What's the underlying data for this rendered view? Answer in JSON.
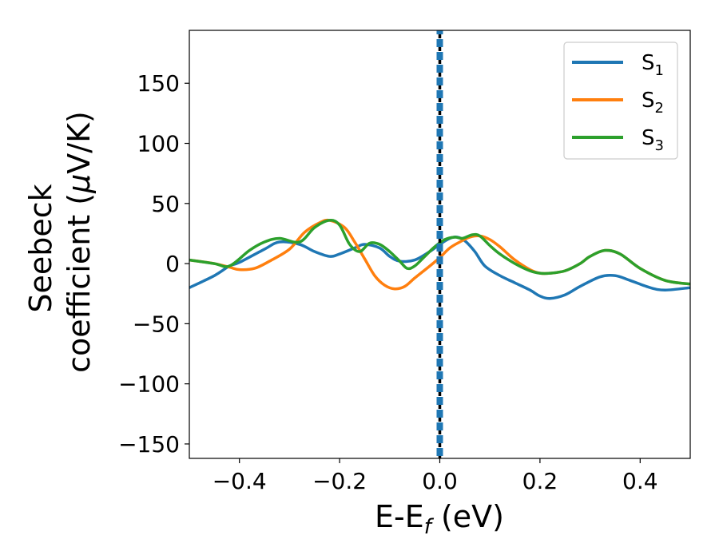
{
  "chart_data": {
    "type": "line",
    "xlabel": {
      "main": "E-E",
      "sub": "f",
      "suffix": " (eV)"
    },
    "ylabel": {
      "line1": "Seebeck",
      "line2": "coefficient  (",
      "mu": "μ",
      "line2_suffix": "V/K)"
    },
    "xlim": [
      -0.5,
      0.5
    ],
    "ylim": [
      -162,
      194
    ],
    "xticks": [
      -0.4,
      -0.2,
      0.0,
      0.2,
      0.4
    ],
    "xtick_labels": [
      "−0.4",
      "−0.2",
      "0.0",
      "0.2",
      "0.4"
    ],
    "yticks": [
      -150,
      -100,
      -50,
      0,
      50,
      100,
      150
    ],
    "ytick_labels": [
      "−150",
      "−100",
      "−50",
      "0",
      "50",
      "100",
      "150"
    ],
    "grid": false,
    "legend_position": "top-right",
    "vline": {
      "x": 0.0,
      "colors": [
        "#000000",
        "#1f77b4"
      ],
      "style": "dashed"
    },
    "series": [
      {
        "name": "S1",
        "name_main": "S",
        "name_sub": "1",
        "color": "#1f77b4",
        "x": [
          -0.5,
          -0.45,
          -0.42,
          -0.4,
          -0.35,
          -0.32,
          -0.28,
          -0.25,
          -0.22,
          -0.2,
          -0.17,
          -0.15,
          -0.12,
          -0.1,
          -0.08,
          -0.05,
          -0.02,
          0.0,
          0.02,
          0.035,
          0.05,
          0.07,
          0.09,
          0.12,
          0.15,
          0.18,
          0.2,
          0.22,
          0.25,
          0.28,
          0.32,
          0.35,
          0.38,
          0.42,
          0.45,
          0.5
        ],
        "y": [
          -20,
          -10,
          -2,
          1,
          12,
          18,
          16,
          10,
          6,
          8,
          13,
          16,
          13,
          6,
          2,
          3,
          10,
          16,
          21,
          22,
          19,
          10,
          -2,
          -10,
          -16,
          -22,
          -27,
          -29,
          -26,
          -19,
          -11,
          -10,
          -14,
          -20,
          -22,
          -20
        ]
      },
      {
        "name": "S2",
        "name_main": "S",
        "name_sub": "2",
        "color": "#ff7f0e",
        "x": [
          -0.5,
          -0.45,
          -0.42,
          -0.4,
          -0.37,
          -0.34,
          -0.3,
          -0.27,
          -0.24,
          -0.22,
          -0.19,
          -0.17,
          -0.15,
          -0.13,
          -0.11,
          -0.09,
          -0.07,
          -0.05,
          -0.02,
          0.0,
          0.02,
          0.04,
          0.06,
          0.08,
          0.1,
          0.12,
          0.15,
          0.18,
          0.2,
          0.22,
          0.25,
          0.28,
          0.3,
          0.33,
          0.36,
          0.4,
          0.45,
          0.5
        ],
        "y": [
          3,
          0,
          -3,
          -5,
          -4,
          2,
          12,
          26,
          34,
          36,
          30,
          18,
          4,
          -10,
          -18,
          -21,
          -19,
          -12,
          -2,
          5,
          13,
          18,
          22,
          23,
          20,
          14,
          3,
          -5,
          -8,
          -8,
          -6,
          0,
          6,
          11,
          8,
          -4,
          -14,
          -17
        ]
      },
      {
        "name": "S3",
        "name_main": "S",
        "name_sub": "3",
        "color": "#2ca02c",
        "x": [
          -0.5,
          -0.45,
          -0.42,
          -0.38,
          -0.35,
          -0.32,
          -0.28,
          -0.25,
          -0.22,
          -0.2,
          -0.18,
          -0.16,
          -0.14,
          -0.12,
          -0.1,
          -0.08,
          -0.065,
          -0.05,
          -0.03,
          -0.01,
          0.01,
          0.03,
          0.045,
          0.065,
          0.08,
          0.1,
          0.12,
          0.15,
          0.18,
          0.2,
          0.22,
          0.25,
          0.28,
          0.3,
          0.33,
          0.36,
          0.4,
          0.45,
          0.5
        ],
        "y": [
          3,
          0,
          -2,
          11,
          18,
          21,
          18,
          30,
          36,
          32,
          16,
          10,
          17,
          16,
          10,
          2,
          -4,
          -2,
          6,
          14,
          20,
          22,
          21,
          24,
          23,
          15,
          8,
          0,
          -6,
          -8,
          -8,
          -6,
          0,
          6,
          11,
          8,
          -4,
          -14,
          -17
        ]
      }
    ]
  }
}
